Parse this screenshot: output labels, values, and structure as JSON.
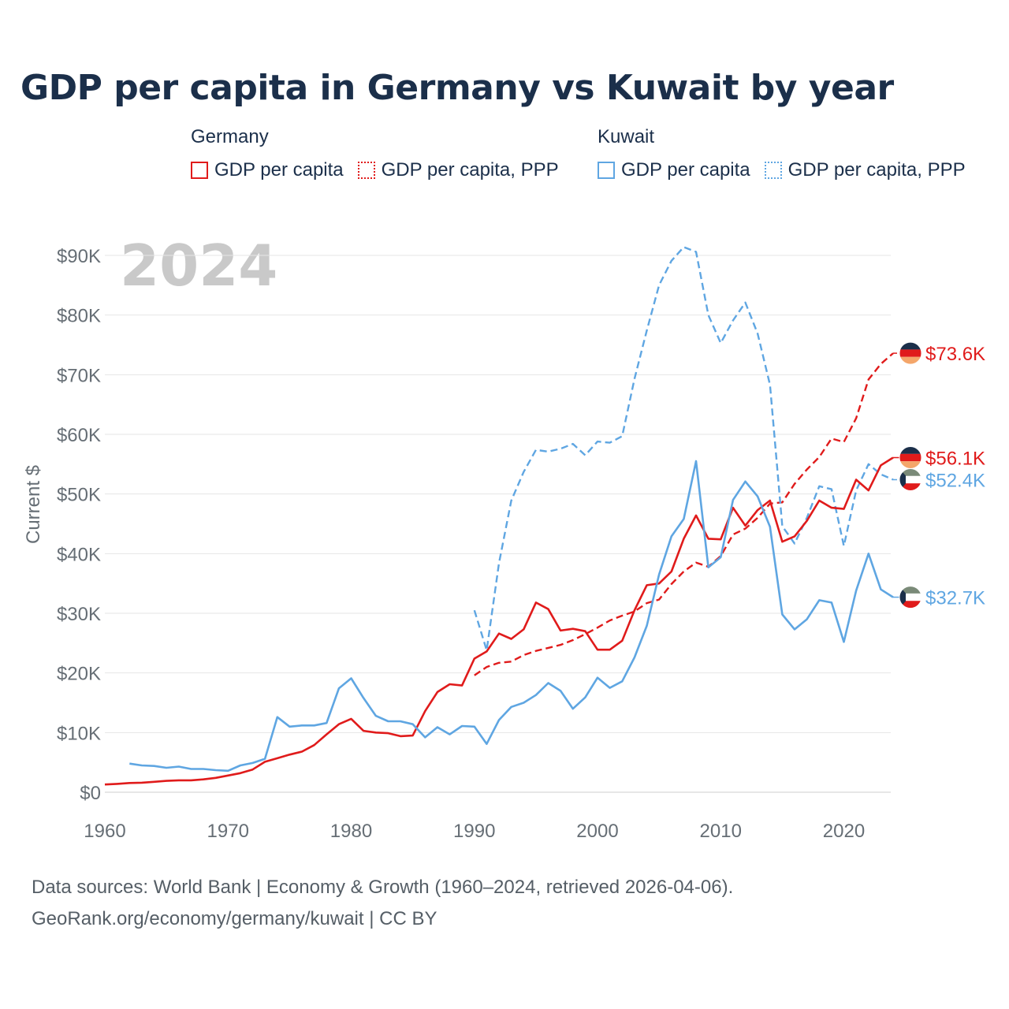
{
  "title": "GDP per capita in Germany vs Kuwait by year",
  "legend": {
    "groups": [
      {
        "name": "Germany",
        "color": "#e01b1b",
        "items": [
          {
            "label": "GDP per capita",
            "style": "solid"
          },
          {
            "label": "GDP per capita, PPP",
            "style": "dotted"
          }
        ]
      },
      {
        "name": "Kuwait",
        "color": "#5fa6e2",
        "items": [
          {
            "label": "GDP per capita",
            "style": "solid"
          },
          {
            "label": "GDP per capita, PPP",
            "style": "dotted"
          }
        ]
      }
    ]
  },
  "footer": {
    "line1": "Data sources: World Bank | Economy & Growth (1960–2024, retrieved 2026-04-06).",
    "line2": "GeoRank.org/economy/germany/kuwait | CC BY"
  },
  "chart_data": {
    "type": "line",
    "year_label": "2024",
    "ylabel": "Current $",
    "xlim": [
      1960,
      2024
    ],
    "ylim": [
      0,
      90000
    ],
    "xticks": [
      1960,
      1970,
      1980,
      1990,
      2000,
      2010,
      2020
    ],
    "yticks": [
      0,
      10000,
      20000,
      30000,
      40000,
      50000,
      60000,
      70000,
      80000,
      90000
    ],
    "ytick_labels": [
      "$0",
      "$10K",
      "$20K",
      "$30K",
      "$40K",
      "$50K",
      "$60K",
      "$70K",
      "$80K",
      "$90K"
    ],
    "grid": true,
    "series": [
      {
        "name": "Germany GDP per capita",
        "country": "Germany",
        "color": "#e01b1b",
        "dash": "solid",
        "end_label": "$56.1K",
        "flag": "germany",
        "start_year": 1960,
        "values": [
          1300,
          1400,
          1550,
          1600,
          1750,
          1900,
          2000,
          2000,
          2150,
          2400,
          2800,
          3200,
          3800,
          5100,
          5700,
          6300,
          6800,
          7900,
          9700,
          11400,
          12300,
          10300,
          10000,
          9900,
          9400,
          9500,
          13600,
          16800,
          18100,
          17900,
          22400,
          23600,
          26600,
          25700,
          27300,
          31800,
          30700,
          27100,
          27400,
          27000,
          23900,
          23900,
          25400,
          30500,
          34700,
          35000,
          37000,
          42500,
          46400,
          42500,
          42400,
          47700,
          44700,
          47300,
          48900,
          42000,
          42900,
          45500,
          48900,
          47700,
          47500,
          52400,
          50600,
          54800,
          56100
        ]
      },
      {
        "name": "Germany GDP per capita, PPP",
        "country": "Germany",
        "color": "#e01b1b",
        "dash": "dashed",
        "end_label": "$73.6K",
        "flag": "germany",
        "start_year": 1990,
        "values": [
          19600,
          21000,
          21700,
          21900,
          23000,
          23700,
          24200,
          24700,
          25500,
          26500,
          27600,
          28800,
          29600,
          30300,
          31700,
          32300,
          34900,
          37000,
          38500,
          37800,
          39600,
          43200,
          44200,
          46000,
          48400,
          48600,
          51700,
          54100,
          56200,
          59300,
          58700,
          62700,
          69200,
          71800,
          73600
        ]
      },
      {
        "name": "Kuwait GDP per capita",
        "country": "Kuwait",
        "color": "#5fa6e2",
        "dash": "solid",
        "end_label": "$32.7K",
        "flag": "kuwait",
        "start_year": 1962,
        "values": [
          4800,
          4500,
          4400,
          4100,
          4300,
          3900,
          3900,
          3700,
          3600,
          4500,
          4900,
          5600,
          12600,
          11000,
          11200,
          11200,
          11600,
          17400,
          19100,
          15800,
          12800,
          11900,
          11900,
          11400,
          9200,
          10900,
          9700,
          11100,
          11000,
          8100,
          12100,
          14300,
          15000,
          16300,
          18300,
          17000,
          14000,
          15900,
          19200,
          17500,
          18600,
          22600,
          27900,
          36500,
          42900,
          45800,
          55500,
          37700,
          39400,
          49000,
          52100,
          49600,
          44500,
          29800,
          27300,
          29000,
          32200,
          31800,
          25200,
          33800,
          40000,
          34000,
          32700
        ]
      },
      {
        "name": "Kuwait GDP per capita, PPP",
        "country": "Kuwait",
        "color": "#5fa6e2",
        "dash": "dashed",
        "end_label": "$52.4K",
        "flag": "kuwait",
        "start_year": 1990,
        "values": [
          30500,
          23800,
          38400,
          48900,
          53700,
          57400,
          57100,
          57600,
          58400,
          56500,
          58800,
          58600,
          59700,
          69300,
          77400,
          85000,
          89100,
          91400,
          90600,
          80000,
          75300,
          79100,
          82100,
          76900,
          68300,
          44600,
          41700,
          46000,
          51300,
          50800,
          41300,
          50600,
          55000,
          53300,
          52400
        ]
      }
    ]
  }
}
